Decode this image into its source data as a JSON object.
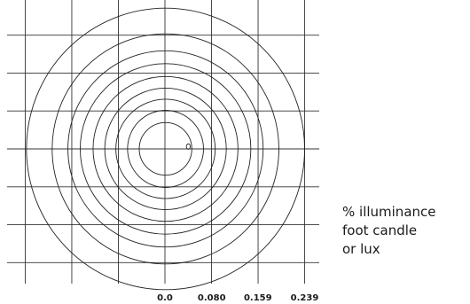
{
  "chart_data": {
    "type": "contour",
    "title": "",
    "xlabel": "",
    "ylabel": "",
    "x_tick_labels": [
      "0.0",
      "0.080",
      "0.159",
      "0.239"
    ],
    "x_ticks": [
      0.0,
      0.08,
      0.159,
      0.239
    ],
    "x_range": [
      -0.319,
      0.399
    ],
    "y_range": [
      -0.279,
      0.279
    ],
    "grid": true,
    "contours": [
      {
        "rx": 0.238,
        "ry": 0.241
      },
      {
        "rx": 0.194,
        "ry": 0.197
      },
      {
        "rx": 0.167,
        "ry": 0.168
      },
      {
        "rx": 0.146,
        "ry": 0.146
      },
      {
        "rx": 0.124,
        "ry": 0.124
      },
      {
        "rx": 0.104,
        "ry": 0.104
      },
      {
        "rx": 0.085,
        "ry": 0.085
      },
      {
        "rx": 0.065,
        "ry": 0.066
      },
      {
        "rx": 0.045,
        "ry": 0.045
      }
    ],
    "legend_lines": [
      "% illuminance",
      "foot candle",
      "or lux"
    ]
  }
}
